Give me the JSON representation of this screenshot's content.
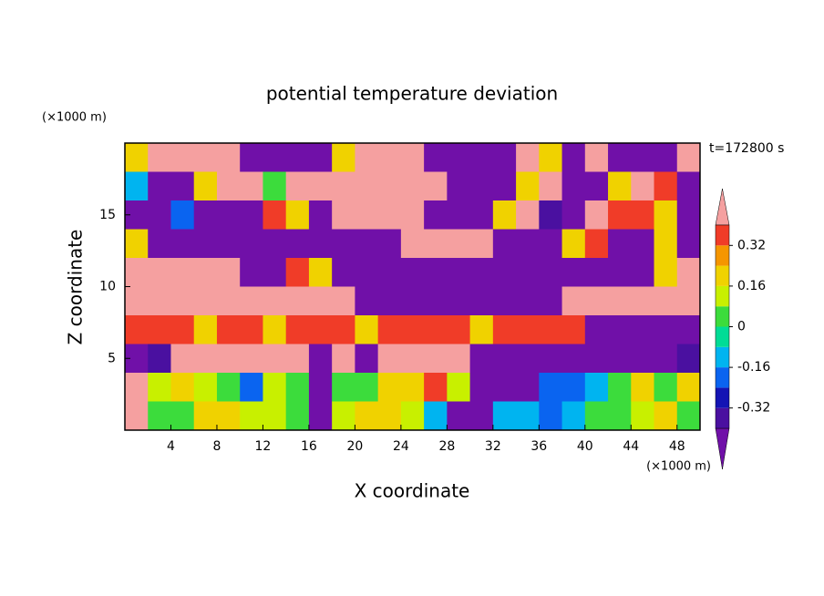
{
  "chart_data": {
    "type": "heatmap",
    "title": "potential temperature deviation",
    "x_label": "X coordinate",
    "y_label": "Z coordinate",
    "x_unit": "(×1000 m)",
    "y_unit": "(×1000 m)",
    "time_label": "t=172800 s",
    "xlim": [
      0,
      50
    ],
    "ylim": [
      0,
      20
    ],
    "xticks": [
      4,
      8,
      12,
      16,
      20,
      24,
      28,
      32,
      36,
      40,
      44,
      48
    ],
    "yticks": [
      5,
      10,
      15
    ],
    "x": [
      1,
      3,
      5,
      7,
      9,
      11,
      13,
      15,
      17,
      19,
      21,
      23,
      25,
      27,
      29,
      31,
      33,
      35,
      37,
      39,
      41,
      43,
      45,
      47,
      49
    ],
    "y": [
      19,
      17,
      15,
      13,
      11,
      9,
      7,
      5,
      3,
      1
    ],
    "values": [
      [
        0.2,
        0.5,
        0.5,
        0.5,
        0.5,
        -0.5,
        -0.5,
        -0.5,
        -0.5,
        0.2,
        0.5,
        0.5,
        0.5,
        -0.5,
        -0.5,
        -0.5,
        -0.5,
        0.5,
        0.2,
        -0.5,
        0.5,
        -0.5,
        -0.5,
        -0.5,
        0.5
      ],
      [
        -0.12,
        -0.5,
        -0.5,
        0.2,
        0.5,
        0.5,
        0.04,
        0.5,
        0.5,
        0.5,
        0.5,
        0.5,
        0.5,
        0.5,
        -0.5,
        -0.5,
        -0.5,
        0.2,
        0.5,
        -0.5,
        -0.5,
        0.2,
        0.5,
        0.36,
        -0.5
      ],
      [
        -0.5,
        -0.5,
        -0.2,
        -0.5,
        -0.5,
        -0.5,
        0.36,
        0.2,
        -0.5,
        0.5,
        0.5,
        0.5,
        0.5,
        -0.5,
        -0.5,
        -0.5,
        0.2,
        0.5,
        -0.36,
        -0.5,
        0.5,
        0.36,
        0.36,
        0.2,
        -0.5
      ],
      [
        0.2,
        -0.5,
        -0.5,
        -0.5,
        -0.5,
        -0.5,
        -0.5,
        -0.5,
        -0.5,
        -0.5,
        -0.5,
        -0.5,
        0.5,
        0.5,
        0.5,
        0.5,
        -0.5,
        -0.5,
        -0.5,
        0.2,
        0.36,
        -0.5,
        -0.5,
        0.2,
        -0.5
      ],
      [
        0.5,
        0.5,
        0.5,
        0.5,
        0.5,
        -0.5,
        -0.5,
        0.36,
        0.2,
        -0.5,
        -0.5,
        -0.5,
        -0.5,
        -0.5,
        -0.5,
        -0.5,
        -0.5,
        -0.5,
        -0.5,
        -0.5,
        -0.5,
        -0.5,
        -0.5,
        0.2,
        0.5
      ],
      [
        0.5,
        0.5,
        0.5,
        0.5,
        0.5,
        0.5,
        0.5,
        0.5,
        0.5,
        0.5,
        -0.5,
        -0.5,
        -0.5,
        -0.5,
        -0.5,
        -0.5,
        -0.5,
        -0.5,
        -0.5,
        0.5,
        0.5,
        0.5,
        0.5,
        0.5,
        0.5
      ],
      [
        0.36,
        0.36,
        0.36,
        0.2,
        0.36,
        0.36,
        0.2,
        0.36,
        0.36,
        0.36,
        0.2,
        0.36,
        0.36,
        0.36,
        0.36,
        0.2,
        0.36,
        0.36,
        0.36,
        0.36,
        -0.5,
        -0.5,
        -0.5,
        -0.5,
        -0.5
      ],
      [
        -0.5,
        -0.36,
        0.5,
        0.5,
        0.5,
        0.5,
        0.5,
        0.5,
        -0.5,
        0.5,
        -0.5,
        0.5,
        0.5,
        0.5,
        0.5,
        -0.5,
        -0.5,
        -0.5,
        -0.5,
        -0.5,
        -0.5,
        -0.5,
        -0.5,
        -0.5,
        -0.36
      ],
      [
        0.5,
        0.12,
        0.2,
        0.12,
        0.04,
        -0.2,
        0.12,
        0.04,
        -0.5,
        0.04,
        0.04,
        0.2,
        0.2,
        0.36,
        0.12,
        -0.5,
        -0.5,
        -0.5,
        -0.2,
        -0.2,
        -0.12,
        0.04,
        0.2,
        0.04,
        0.2
      ],
      [
        0.5,
        0.04,
        0.04,
        0.2,
        0.2,
        0.12,
        0.12,
        0.04,
        -0.5,
        0.12,
        0.2,
        0.2,
        0.12,
        -0.12,
        -0.5,
        -0.5,
        -0.12,
        -0.12,
        -0.2,
        -0.12,
        0.04,
        0.04,
        0.12,
        0.2,
        0.04
      ]
    ],
    "levels": [
      -0.4,
      -0.32,
      -0.24,
      -0.16,
      -0.08,
      0,
      0.08,
      0.16,
      0.24,
      0.32,
      0.4
    ],
    "colors": [
      "#7010a8",
      "#4a10a0",
      "#1414b4",
      "#0a64f0",
      "#00b4f0",
      "#00dc96",
      "#3cdc3c",
      "#c8f000",
      "#f0d200",
      "#f59600",
      "#f03c28",
      "#f5a0a0"
    ],
    "colorbar_ticks": [
      0.32,
      0.16,
      0,
      -0.16,
      -0.32
    ]
  }
}
